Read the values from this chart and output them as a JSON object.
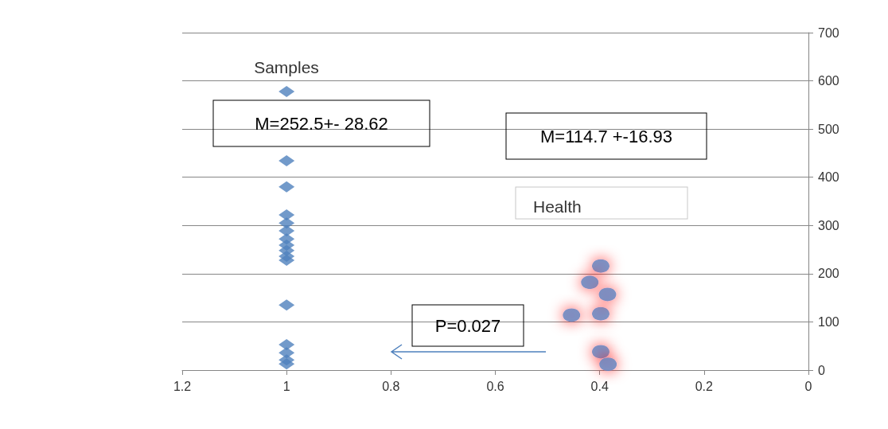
{
  "chart_data": {
    "type": "scatter",
    "annotations": [
      "M=252.5+- 28.62",
      "M=114.7 +-16.93",
      "P=0.027"
    ],
    "xlim": [
      1.2,
      0
    ],
    "xticks": [
      1.2,
      1,
      0.8,
      0.6,
      0.4,
      0.2,
      0
    ],
    "ylim": [
      0,
      700
    ],
    "yticks": [
      0,
      100,
      200,
      300,
      400,
      500,
      600,
      700
    ],
    "grid": "y",
    "legend": false,
    "series": [
      {
        "name": "Samples",
        "color": "#4f81bd",
        "marker": "diamond",
        "x": [
          1,
          1,
          1,
          1,
          1,
          1,
          1,
          1,
          1,
          1,
          1,
          1,
          1,
          1,
          1,
          1
        ],
        "values": [
          578,
          434,
          380,
          322,
          305,
          289,
          272,
          259,
          248,
          236,
          228,
          135,
          53,
          36,
          21,
          13
        ]
      },
      {
        "name": "Health",
        "color": "#4f81bd",
        "marker": "circle",
        "x": [
          0.398,
          0.419,
          0.454,
          0.398,
          0.385,
          0.398,
          0.384
        ],
        "values": [
          216,
          182,
          114,
          117,
          157,
          38,
          12
        ]
      }
    ]
  }
}
